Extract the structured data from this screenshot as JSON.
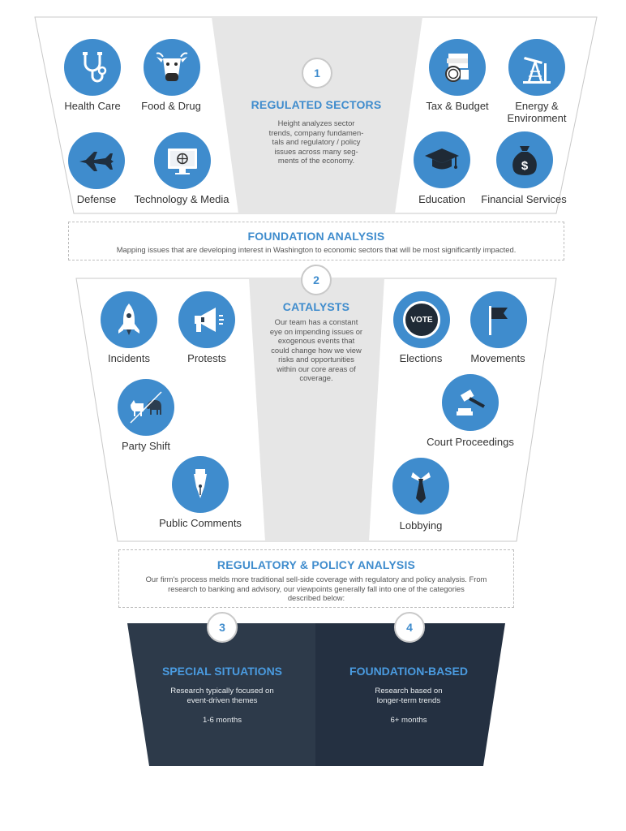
{
  "sections": {
    "regulated": {
      "number": "1",
      "title": "REGULATED SECTORS",
      "description_lines": [
        "Height analyzes sector",
        "trends, company fundamen-",
        "tals and regulatory / policy",
        "issues across many seg-",
        "ments of the economy."
      ]
    },
    "foundation_band": {
      "title": "FOUNDATION ANALYSIS",
      "description": "Mapping issues that are developing interest in Washington to economic sectors that will be most significantly impacted."
    },
    "catalysts": {
      "number": "2",
      "title": "CATALYSTS",
      "description_lines": [
        "Our team has a constant",
        "eye on impending issues or",
        "exogenous events that",
        "could change how we view",
        "risks and opportunities",
        "within our core areas of",
        "coverage."
      ]
    },
    "regulatory_band": {
      "title": "REGULATORY & POLICY ANALYSIS",
      "description_lines": [
        "Our firm's process melds more traditional sell-side coverage with regulatory and policy analysis. From",
        "research to banking and advisory, our viewpoints generally fall into one of the categories",
        "described below:"
      ]
    },
    "special": {
      "number": "3",
      "title": "SPECIAL SITUATIONS",
      "description_lines": [
        "Research typically focused on",
        "event-driven themes"
      ],
      "duration": "1-6 months"
    },
    "foundation_based": {
      "number": "4",
      "title": "FOUNDATION-BASED",
      "description_lines": [
        "Research based on",
        "longer-term trends"
      ],
      "duration": "6+ months"
    }
  },
  "sectors": {
    "health_care": "Health Care",
    "food_drug": "Food & Drug",
    "defense": "Defense",
    "tech_media": "Technology & Media",
    "tax_budget": "Tax & Budget",
    "energy_line1": "Energy &",
    "energy_line2": "Environment",
    "education": "Education",
    "financial": "Financial Services"
  },
  "catalyst_items": {
    "incidents": "Incidents",
    "protests": "Protests",
    "party_shift": "Party Shift",
    "public_comments": "Public Comments",
    "elections": "Elections",
    "vote_badge": "VOTE",
    "movements": "Movements",
    "court": "Court Proceedings",
    "lobbying": "Lobbying"
  },
  "colors": {
    "accent_blue": "#3f8ccd",
    "funnel_grey": "#e6e6e6",
    "dark_left": "#2d3a4a",
    "dark_right": "#243041"
  }
}
